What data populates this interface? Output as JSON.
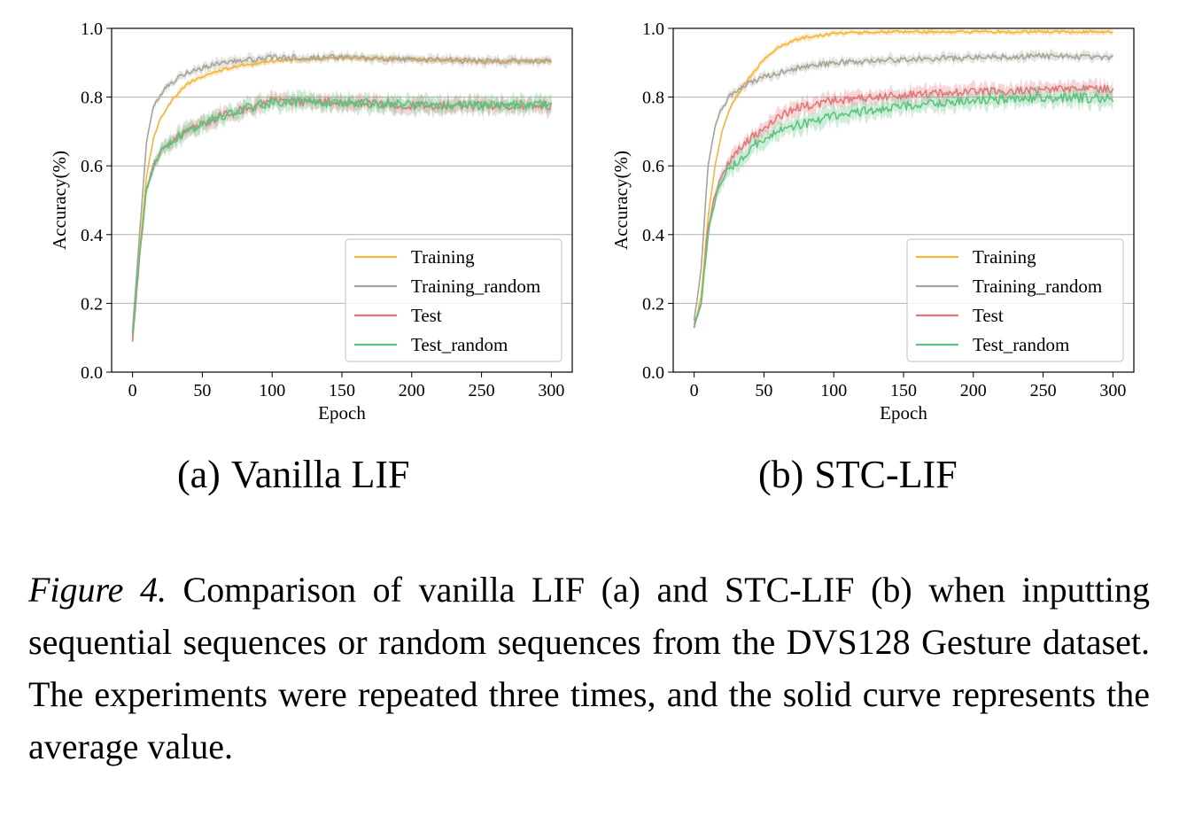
{
  "figure": {
    "label": "Figure 4.",
    "caption": "Comparison of vanilla LIF (a) and STC-LIF (b) when inputting sequential sequences or random sequences from the DVS128 Gesture dataset. The experiments were repeated three times, and the solid curve represents the average value."
  },
  "subcaptions": [
    {
      "tag": "(a)",
      "text": "Vanilla LIF"
    },
    {
      "tag": "(b)",
      "text": "STC-LIF"
    }
  ],
  "series_colors": {
    "Training": "#f5b43a",
    "Training_random": "#a8a497",
    "Test": "#e0787a",
    "Test_random": "#5cc47f"
  },
  "chart_data": [
    {
      "type": "line",
      "title": "Vanilla LIF",
      "xlabel": "Epoch",
      "ylabel": "Accuracy(%)",
      "xlim": [
        -15,
        315
      ],
      "ylim": [
        0.0,
        1.0
      ],
      "xticks": [
        0,
        50,
        100,
        150,
        200,
        250,
        300
      ],
      "yticks": [
        0.0,
        0.2,
        0.4,
        0.6,
        0.8,
        1.0
      ],
      "ytick_labels": [
        "0.0",
        "0.2",
        "0.4",
        "0.6",
        "0.8",
        "1.0"
      ],
      "grid": "horizontal",
      "legend": "lower-right",
      "series": [
        {
          "name": "Training",
          "x": [
            0,
            5,
            10,
            15,
            20,
            30,
            40,
            50,
            60,
            75,
            100,
            125,
            150,
            175,
            200,
            250,
            300
          ],
          "values": [
            0.1,
            0.35,
            0.57,
            0.68,
            0.74,
            0.8,
            0.84,
            0.86,
            0.875,
            0.89,
            0.905,
            0.91,
            0.915,
            0.912,
            0.91,
            0.905,
            0.905
          ]
        },
        {
          "name": "Training_random",
          "x": [
            0,
            5,
            10,
            15,
            20,
            30,
            40,
            50,
            60,
            75,
            100,
            125,
            150,
            175,
            200,
            250,
            300
          ],
          "values": [
            0.12,
            0.4,
            0.67,
            0.77,
            0.81,
            0.85,
            0.875,
            0.885,
            0.895,
            0.905,
            0.915,
            0.915,
            0.915,
            0.912,
            0.91,
            0.905,
            0.905
          ]
        },
        {
          "name": "Test",
          "x": [
            0,
            5,
            10,
            15,
            20,
            30,
            40,
            50,
            60,
            75,
            100,
            125,
            150,
            200,
            250,
            300
          ],
          "values": [
            0.09,
            0.33,
            0.53,
            0.6,
            0.64,
            0.68,
            0.7,
            0.72,
            0.74,
            0.76,
            0.79,
            0.785,
            0.785,
            0.775,
            0.775,
            0.775
          ]
        },
        {
          "name": "Test_random",
          "x": [
            0,
            5,
            10,
            15,
            20,
            30,
            40,
            50,
            60,
            75,
            100,
            125,
            150,
            200,
            250,
            300
          ],
          "values": [
            0.11,
            0.34,
            0.53,
            0.6,
            0.64,
            0.68,
            0.7,
            0.72,
            0.74,
            0.76,
            0.785,
            0.785,
            0.785,
            0.78,
            0.775,
            0.78
          ]
        }
      ]
    },
    {
      "type": "line",
      "title": "STC-LIF",
      "xlabel": "Epoch",
      "ylabel": "Accuracy(%)",
      "xlim": [
        -15,
        315
      ],
      "ylim": [
        0.0,
        1.0
      ],
      "xticks": [
        0,
        50,
        100,
        150,
        200,
        250,
        300
      ],
      "yticks": [
        0.0,
        0.2,
        0.4,
        0.6,
        0.8,
        1.0
      ],
      "ytick_labels": [
        "0.0",
        "0.2",
        "0.4",
        "0.6",
        "0.8",
        "1.0"
      ],
      "grid": "horizontal",
      "legend": "lower-right",
      "series": [
        {
          "name": "Training",
          "x": [
            0,
            5,
            10,
            15,
            20,
            25,
            30,
            40,
            50,
            60,
            75,
            100,
            125,
            150,
            200,
            250,
            300
          ],
          "values": [
            0.13,
            0.22,
            0.45,
            0.6,
            0.7,
            0.76,
            0.8,
            0.86,
            0.91,
            0.945,
            0.97,
            0.985,
            0.988,
            0.99,
            0.99,
            0.99,
            0.99
          ]
        },
        {
          "name": "Training_random",
          "x": [
            0,
            5,
            10,
            15,
            20,
            25,
            30,
            40,
            50,
            60,
            75,
            100,
            125,
            150,
            200,
            250,
            300
          ],
          "values": [
            0.15,
            0.3,
            0.6,
            0.72,
            0.77,
            0.8,
            0.82,
            0.84,
            0.86,
            0.87,
            0.885,
            0.9,
            0.905,
            0.91,
            0.915,
            0.92,
            0.915
          ]
        },
        {
          "name": "Test",
          "x": [
            0,
            5,
            10,
            15,
            20,
            25,
            30,
            40,
            50,
            60,
            75,
            100,
            125,
            150,
            200,
            250,
            300
          ],
          "values": [
            0.13,
            0.2,
            0.42,
            0.52,
            0.58,
            0.61,
            0.64,
            0.68,
            0.71,
            0.74,
            0.77,
            0.79,
            0.8,
            0.805,
            0.815,
            0.82,
            0.825
          ]
        },
        {
          "name": "Test_random",
          "x": [
            0,
            5,
            10,
            15,
            20,
            25,
            30,
            40,
            50,
            60,
            75,
            100,
            125,
            150,
            200,
            250,
            300
          ],
          "values": [
            0.14,
            0.2,
            0.4,
            0.5,
            0.56,
            0.59,
            0.61,
            0.65,
            0.68,
            0.7,
            0.72,
            0.745,
            0.76,
            0.775,
            0.79,
            0.8,
            0.795
          ]
        }
      ]
    }
  ]
}
